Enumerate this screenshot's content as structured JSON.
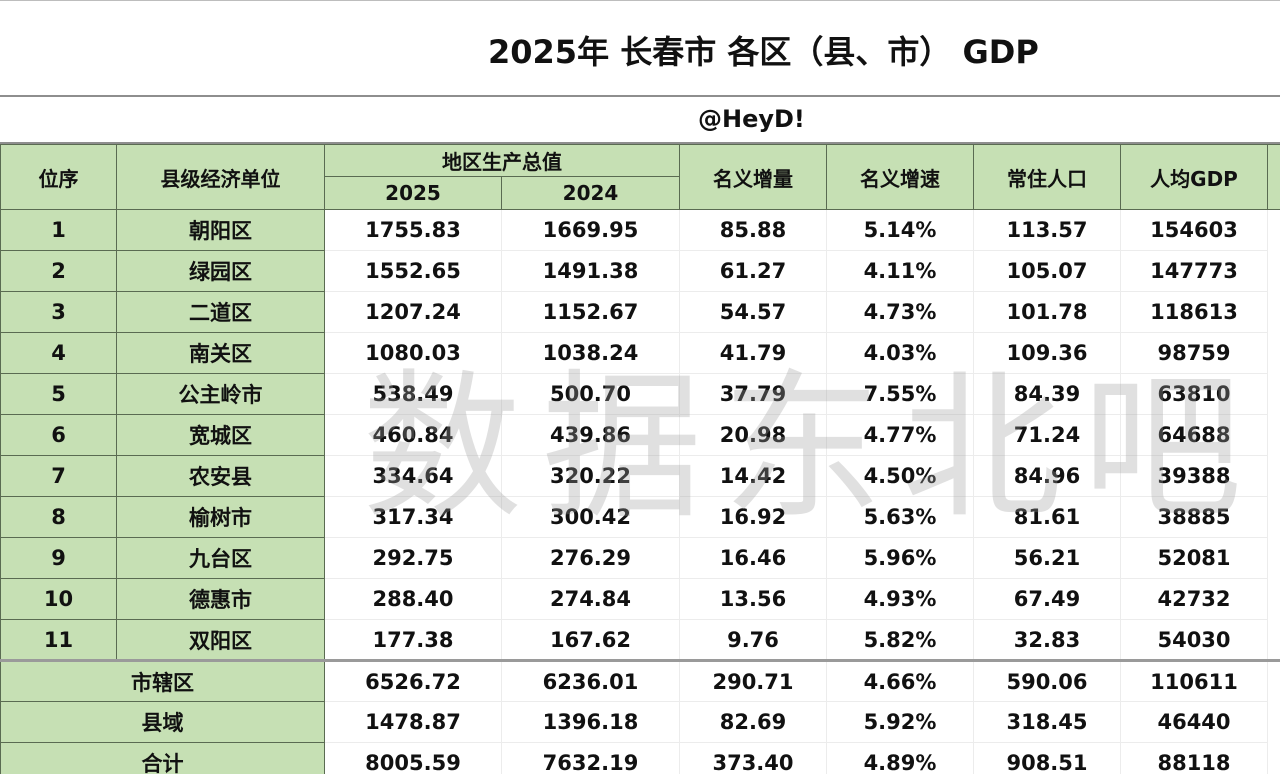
{
  "title": "2025年 长春市 各区（县、市） GDP",
  "credit": "@HeyD!",
  "watermark": "数据东北吧",
  "colors": {
    "header_green": "#c6e0b4",
    "border_dark": "#5a6b52",
    "cell_white": "#ffffff"
  },
  "header": {
    "rank": "位序",
    "unit": "县级经济单位",
    "gdp_group": "地区生产总值",
    "year_2025": "2025",
    "year_2024": "2024",
    "nominal_increase": "名义增量",
    "nominal_growth": "名义增速",
    "population": "常住人口",
    "gdp_per_capita": "人均GDP"
  },
  "rows": [
    {
      "rank": "1",
      "name": "朝阳区",
      "gdp_2025": "1755.83",
      "gdp_2024": "1669.95",
      "increase": "85.88",
      "growth": "5.14%",
      "population": "113.57",
      "per_capita": "154603"
    },
    {
      "rank": "2",
      "name": "绿园区",
      "gdp_2025": "1552.65",
      "gdp_2024": "1491.38",
      "increase": "61.27",
      "growth": "4.11%",
      "population": "105.07",
      "per_capita": "147773"
    },
    {
      "rank": "3",
      "name": "二道区",
      "gdp_2025": "1207.24",
      "gdp_2024": "1152.67",
      "increase": "54.57",
      "growth": "4.73%",
      "population": "101.78",
      "per_capita": "118613"
    },
    {
      "rank": "4",
      "name": "南关区",
      "gdp_2025": "1080.03",
      "gdp_2024": "1038.24",
      "increase": "41.79",
      "growth": "4.03%",
      "population": "109.36",
      "per_capita": "98759"
    },
    {
      "rank": "5",
      "name": "公主岭市",
      "gdp_2025": "538.49",
      "gdp_2024": "500.70",
      "increase": "37.79",
      "growth": "7.55%",
      "population": "84.39",
      "per_capita": "63810"
    },
    {
      "rank": "6",
      "name": "宽城区",
      "gdp_2025": "460.84",
      "gdp_2024": "439.86",
      "increase": "20.98",
      "growth": "4.77%",
      "population": "71.24",
      "per_capita": "64688"
    },
    {
      "rank": "7",
      "name": "农安县",
      "gdp_2025": "334.64",
      "gdp_2024": "320.22",
      "increase": "14.42",
      "growth": "4.50%",
      "population": "84.96",
      "per_capita": "39388"
    },
    {
      "rank": "8",
      "name": "榆树市",
      "gdp_2025": "317.34",
      "gdp_2024": "300.42",
      "increase": "16.92",
      "growth": "5.63%",
      "population": "81.61",
      "per_capita": "38885"
    },
    {
      "rank": "9",
      "name": "九台区",
      "gdp_2025": "292.75",
      "gdp_2024": "276.29",
      "increase": "16.46",
      "growth": "5.96%",
      "population": "56.21",
      "per_capita": "52081"
    },
    {
      "rank": "10",
      "name": "德惠市",
      "gdp_2025": "288.40",
      "gdp_2024": "274.84",
      "increase": "13.56",
      "growth": "4.93%",
      "population": "67.49",
      "per_capita": "42732"
    },
    {
      "rank": "11",
      "name": "双阳区",
      "gdp_2025": "177.38",
      "gdp_2024": "167.62",
      "increase": "9.76",
      "growth": "5.82%",
      "population": "32.83",
      "per_capita": "54030"
    }
  ],
  "summary": [
    {
      "name": "市辖区",
      "gdp_2025": "6526.72",
      "gdp_2024": "6236.01",
      "increase": "290.71",
      "growth": "4.66%",
      "population": "590.06",
      "per_capita": "110611"
    },
    {
      "name": "县域",
      "gdp_2025": "1478.87",
      "gdp_2024": "1396.18",
      "increase": "82.69",
      "growth": "5.92%",
      "population": "318.45",
      "per_capita": "46440"
    },
    {
      "name": "合计",
      "gdp_2025": "8005.59",
      "gdp_2024": "7632.19",
      "increase": "373.40",
      "growth": "4.89%",
      "population": "908.51",
      "per_capita": "88118"
    }
  ]
}
